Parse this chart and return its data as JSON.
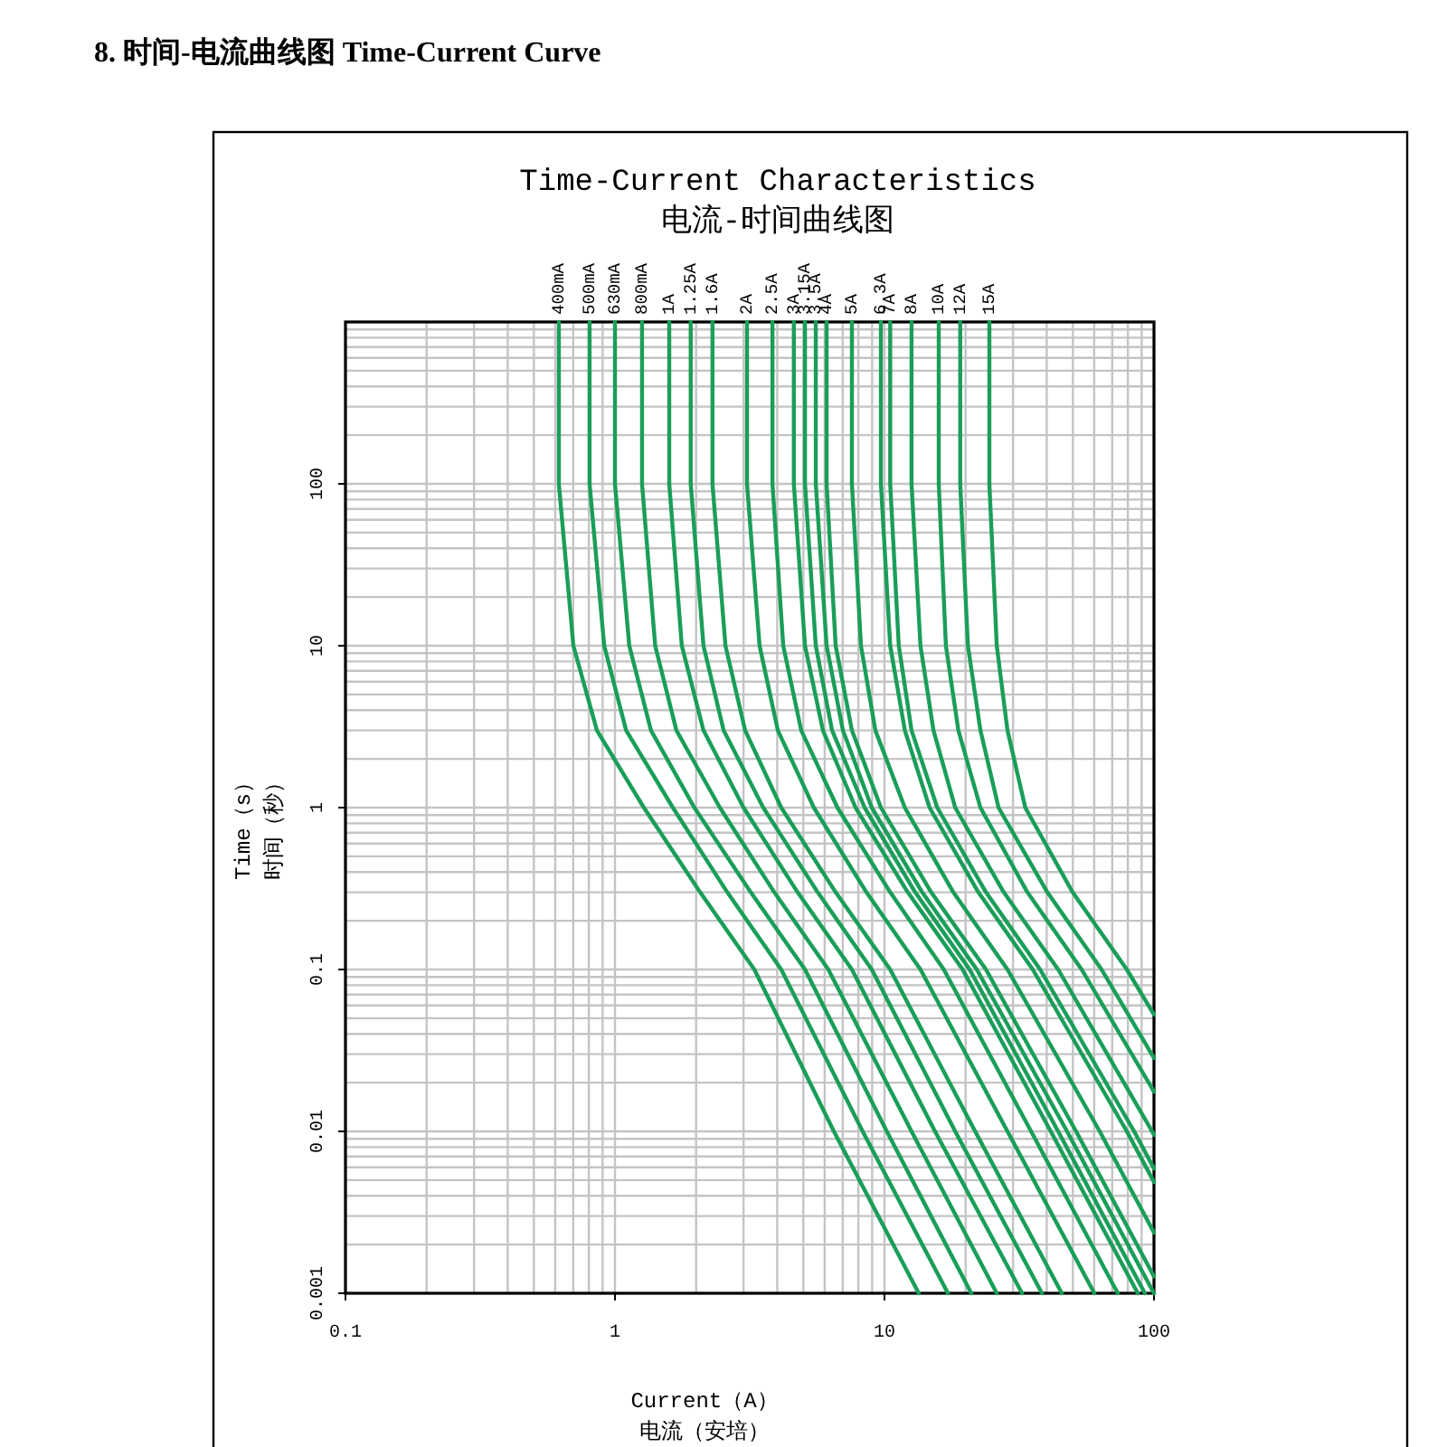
{
  "chart_data": {
    "type": "line",
    "title": "8. 时间-电流曲线图 Time-Current Curve",
    "subtitle": "Time-Current Characteristics\n电流-时间曲线图",
    "xlabel": "Current（A）",
    "ylabel": "Time（s）",
    "annotations": [
      "电流（安培）",
      "时间（秒）"
    ],
    "log": "xy",
    "xlim": [
      0.1,
      100
    ],
    "ylim": [
      0.001,
      1000
    ],
    "xticks": [
      0.1,
      1,
      10,
      100
    ],
    "yticks": [
      0.001,
      0.01,
      0.1,
      1,
      10,
      100
    ],
    "grid": true,
    "series": [
      {
        "name": "400mA",
        "color": "#1a9e5a",
        "x": [
          0.619,
          0.619,
          0.701,
          0.857,
          1.28,
          2.07,
          3.29,
          6.49,
          13.4
        ],
        "values": [
          1000,
          100,
          10,
          3,
          1,
          0.3,
          0.1,
          0.01,
          0.001
        ]
      },
      {
        "name": "500mA",
        "color": "#1a9e5a",
        "x": [
          0.805,
          0.805,
          0.912,
          1.1,
          1.64,
          2.61,
          4.14,
          8.3,
          17.2
        ],
        "values": [
          1000,
          100,
          10,
          3,
          1,
          0.3,
          0.1,
          0.01,
          0.001
        ]
      },
      {
        "name": "630mA",
        "color": "#1a9e5a",
        "x": [
          1,
          1,
          1.13,
          1.36,
          1.97,
          3.19,
          5.07,
          10.2,
          21
        ],
        "values": [
          1000,
          100,
          10,
          3,
          1,
          0.3,
          0.1,
          0.01,
          0.001
        ]
      },
      {
        "name": "800mA",
        "color": "#1a9e5a",
        "x": [
          1.26,
          1.26,
          1.41,
          1.69,
          2.45,
          3.9,
          6.19,
          12.6,
          26.1
        ],
        "values": [
          1000,
          100,
          10,
          3,
          1,
          0.3,
          0.1,
          0.01,
          0.001
        ]
      },
      {
        "name": "1A",
        "color": "#1a9e5a",
        "x": [
          1.59,
          1.59,
          1.77,
          2.13,
          3,
          4.76,
          7.57,
          15.4,
          32.4
        ],
        "values": [
          1000,
          100,
          10,
          3,
          1,
          0.3,
          0.1,
          0.01,
          0.001
        ]
      },
      {
        "name": "1.25A",
        "color": "#1a9e5a",
        "x": [
          1.91,
          1.91,
          2.13,
          2.53,
          3.55,
          5.65,
          8.97,
          18.3,
          38.4
        ],
        "values": [
          1000,
          100,
          10,
          3,
          1,
          0.3,
          0.1,
          0.01,
          0.001
        ]
      },
      {
        "name": "1.6A",
        "color": "#1a9e5a",
        "x": [
          2.3,
          2.3,
          2.57,
          3.04,
          4.14,
          6.59,
          10.5,
          21.7,
          45.5
        ],
        "values": [
          1000,
          100,
          10,
          3,
          1,
          0.3,
          0.1,
          0.01,
          0.001
        ]
      },
      {
        "name": "2A",
        "color": "#1a9e5a",
        "x": [
          3.09,
          3.09,
          3.44,
          4.02,
          5.47,
          8.57,
          13.6,
          28.6,
          60.1
        ],
        "values": [
          1000,
          100,
          10,
          3,
          1,
          0.3,
          0.1,
          0.01,
          0.001
        ]
      },
      {
        "name": "2.5A",
        "color": "#1a9e5a",
        "x": [
          3.84,
          3.84,
          4.21,
          4.91,
          6.69,
          10.5,
          16.6,
          35,
          73.4
        ],
        "values": [
          1000,
          100,
          10,
          3,
          1,
          0.3,
          0.1,
          0.01,
          0.001
        ]
      },
      {
        "name": "3A",
        "color": "#1a9e5a",
        "x": [
          4.61,
          4.61,
          5.07,
          5.91,
          7.81,
          12.2,
          19.5,
          41.4,
          87.1
        ],
        "values": [
          1000,
          100,
          10,
          3,
          1,
          0.3,
          0.1,
          0.01,
          0.001
        ]
      },
      {
        "name": "3.15A",
        "color": "#1a9e5a",
        "x": [
          5.07,
          5.07,
          5.56,
          6.39,
          8.44,
          13,
          20.7,
          44.1,
          92.5
        ],
        "values": [
          1000,
          100,
          10,
          3,
          1,
          0.3,
          0.1,
          0.01,
          0.001
        ]
      },
      {
        "name": "3.5A",
        "color": "#1a9e5a",
        "x": [
          5.56,
          5.56,
          6.1,
          7.01,
          8.97,
          13.8,
          22,
          47.6,
          100
        ],
        "values": [
          1000,
          100,
          10,
          3,
          1,
          0.3,
          0.1,
          0.01,
          0.001
        ]
      },
      {
        "name": "4A",
        "color": "#1a9e5a",
        "x": [
          6.1,
          6.1,
          6.59,
          7.57,
          9.7,
          14.9,
          23.8,
          51.4,
          100
        ],
        "values": [
          1000,
          100,
          10,
          3,
          1,
          0.3,
          0.1,
          0.01,
          0.00127
        ]
      },
      {
        "name": "5A",
        "color": "#1a9e5a",
        "x": [
          7.57,
          7.57,
          8.18,
          9.25,
          11.9,
          18,
          28.6,
          62.9,
          100
        ],
        "values": [
          1000,
          100,
          10,
          3,
          1,
          0.3,
          0.1,
          0.01,
          0.00237
        ]
      },
      {
        "name": "6.3A",
        "color": "#1a9e5a",
        "x": [
          9.7,
          9.7,
          10.5,
          11.9,
          14.7,
          22.3,
          35.5,
          79.3,
          100
        ],
        "values": [
          1000,
          100,
          10,
          3,
          1,
          0.3,
          0.1,
          0.01,
          0.00487
        ]
      },
      {
        "name": "7A",
        "color": "#1a9e5a",
        "x": [
          10.5,
          10.5,
          11.3,
          12.6,
          15.7,
          23.8,
          37.8,
          84.4,
          100
        ],
        "values": [
          1000,
          100,
          10,
          3,
          1,
          0.3,
          0.1,
          0.01,
          0.0059
        ]
      },
      {
        "name": "8A",
        "color": "#1a9e5a",
        "x": [
          12.6,
          12.6,
          13.6,
          15.2,
          18.3,
          27.7,
          44.1,
          98.4,
          100
        ],
        "values": [
          1000,
          100,
          10,
          3,
          1,
          0.3,
          0.1,
          0.01,
          0.0095
        ]
      },
      {
        "name": "10A",
        "color": "#1a9e5a",
        "x": [
          15.9,
          15.9,
          16.9,
          18.8,
          22.7,
          33.9,
          53.9,
          100
        ],
        "values": [
          1000,
          100,
          10,
          3,
          1,
          0.3,
          0.1,
          0.0176
        ]
      },
      {
        "name": "12A",
        "color": "#1a9e5a",
        "x": [
          19.1,
          19.1,
          20.4,
          22.7,
          26.5,
          40.2,
          63.9,
          100
        ],
        "values": [
          1000,
          100,
          10,
          3,
          1,
          0.3,
          0.1,
          0.0284
        ]
      },
      {
        "name": "15A",
        "color": "#1a9e5a",
        "x": [
          24.5,
          24.5,
          26.1,
          28.6,
          33.3,
          49.9,
          79.3,
          100
        ],
        "values": [
          1000,
          100,
          10,
          3,
          1,
          0.3,
          0.1,
          0.0527
        ]
      }
    ]
  }
}
